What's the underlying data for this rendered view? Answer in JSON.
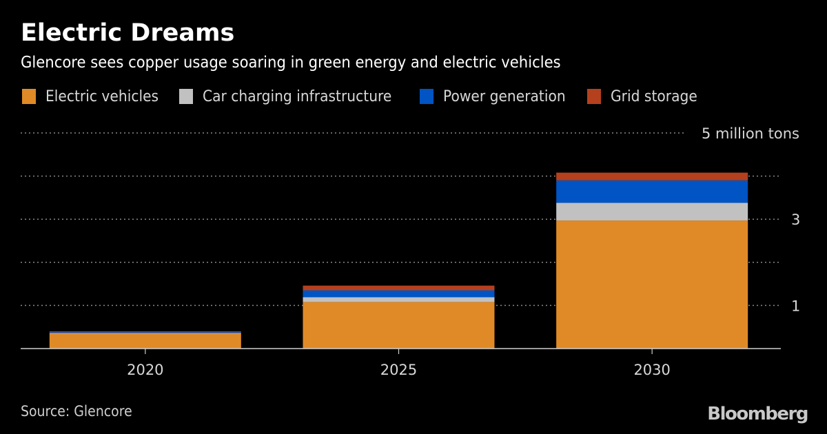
{
  "header": {
    "title": "Electric Dreams",
    "subtitle": "Glencore sees copper usage soaring in green energy and electric vehicles"
  },
  "footer": {
    "source": "Source: Glencore",
    "logo": "Bloomberg"
  },
  "chart_data": {
    "type": "bar",
    "stacked": true,
    "title": "Electric Dreams",
    "subtitle": "Glencore sees copper usage soaring in green energy and electric vehicles",
    "xlabel": "",
    "ylabel": "million tons",
    "categories": [
      "2020",
      "2025",
      "2030"
    ],
    "series": [
      {
        "name": "Electric vehicles",
        "color": "#e08a27",
        "values": [
          0.34,
          1.08,
          2.97
        ]
      },
      {
        "name": "Car charging infrastructure",
        "color": "#c1c1c1",
        "values": [
          0.02,
          0.11,
          0.41
        ]
      },
      {
        "name": "Power generation",
        "color": "#0054c3",
        "values": [
          0.02,
          0.16,
          0.52
        ]
      },
      {
        "name": "Grid storage",
        "color": "#b5401e",
        "values": [
          0.02,
          0.11,
          0.18
        ]
      }
    ],
    "ylim": [
      0,
      5
    ],
    "gridlines": [
      1,
      2,
      3,
      4,
      5
    ],
    "y_tick_labels": [
      {
        "value": 5,
        "label": "5 million tons"
      },
      {
        "value": 3,
        "label": "3"
      },
      {
        "value": 1,
        "label": "1"
      }
    ],
    "grid": true,
    "legend_position": "top-left"
  }
}
